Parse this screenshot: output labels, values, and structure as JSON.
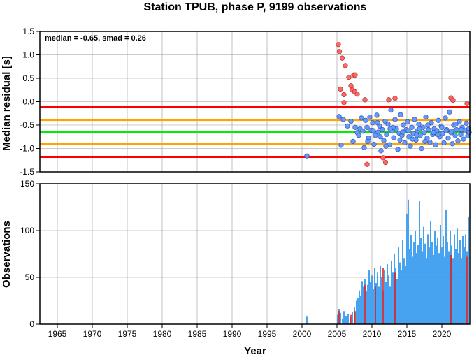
{
  "chart_data": [
    {
      "type": "scatter",
      "title": "Station TPUB, phase P, 9199 observations",
      "ylabel": "Median residual [s]",
      "annotation": "median = -0.65, smad = 0.26",
      "xlim": [
        1962.5,
        2024.0
      ],
      "ylim": [
        -1.5,
        1.5
      ],
      "yticks": [
        "1.5",
        "1.0",
        "0.5",
        "0.0",
        "-0.5",
        "-1.0",
        "-1.5"
      ],
      "grid": true,
      "reference_lines": [
        {
          "y": -0.12,
          "color": "#ff0000"
        },
        {
          "y": -0.39,
          "color": "#ffa500"
        },
        {
          "y": -0.65,
          "color": "#00ee00"
        },
        {
          "y": -0.91,
          "color": "#ffa500"
        },
        {
          "y": -1.18,
          "color": "#ff0000"
        }
      ],
      "colors": {
        "inlier": "#6699ff",
        "outlier": "#ff6666"
      },
      "outliers": [
        [
          2005.2,
          1.22
        ],
        [
          2005.35,
          1.07
        ],
        [
          2005.5,
          0.27
        ],
        [
          2005.75,
          0.93
        ],
        [
          2006.0,
          0.15
        ],
        [
          2006.2,
          0.77
        ],
        [
          2006.0,
          -0.02
        ],
        [
          2006.7,
          0.52
        ],
        [
          2007.0,
          0.34
        ],
        [
          2007.2,
          0.25
        ],
        [
          2007.4,
          0.57
        ],
        [
          2007.6,
          0.57
        ],
        [
          2007.55,
          0.21
        ],
        [
          2007.9,
          0.16
        ],
        [
          2009.0,
          0.04
        ],
        [
          2012.4,
          0.04
        ],
        [
          2013.3,
          0.07
        ],
        [
          2021.3,
          0.08
        ],
        [
          2021.6,
          0.03
        ],
        [
          2023.6,
          -0.04
        ],
        [
          2009.3,
          -1.34
        ],
        [
          2011.6,
          -1.2
        ],
        [
          2011.95,
          -1.3
        ]
      ],
      "inliers": [
        [
          2000.7,
          -1.16
        ],
        [
          2005.3,
          -0.32
        ],
        [
          2005.6,
          -0.93
        ],
        [
          2005.9,
          -0.38
        ],
        [
          2006.5,
          -0.52
        ],
        [
          2007.0,
          -0.42
        ],
        [
          2007.3,
          -0.85
        ],
        [
          2007.6,
          -0.55
        ],
        [
          2007.9,
          -0.66
        ],
        [
          2008.1,
          -0.72
        ],
        [
          2008.3,
          -0.58
        ],
        [
          2008.5,
          -0.35
        ],
        [
          2008.7,
          -0.63
        ],
        [
          2008.9,
          -0.98
        ],
        [
          2009.1,
          -0.4
        ],
        [
          2009.3,
          -0.55
        ],
        [
          2009.5,
          -0.78
        ],
        [
          2009.7,
          -0.33
        ],
        [
          2009.9,
          -0.61
        ],
        [
          2010.1,
          -0.45
        ],
        [
          2010.3,
          -0.91
        ],
        [
          2010.5,
          -0.72
        ],
        [
          2010.7,
          -0.29
        ],
        [
          2010.9,
          -0.65
        ],
        [
          2011.1,
          -0.52
        ],
        [
          2011.3,
          -1.05
        ],
        [
          2011.5,
          -0.6
        ],
        [
          2011.7,
          -0.83
        ],
        [
          2011.9,
          -0.42
        ],
        [
          2012.1,
          -0.7
        ],
        [
          2012.3,
          -0.48
        ],
        [
          2012.5,
          -0.92
        ],
        [
          2012.7,
          -0.18
        ],
        [
          2012.9,
          -0.63
        ],
        [
          2013.1,
          -0.77
        ],
        [
          2013.3,
          -0.38
        ],
        [
          2013.5,
          -0.58
        ],
        [
          2013.7,
          -1.02
        ],
        [
          2013.9,
          -0.67
        ],
        [
          2014.1,
          -0.28
        ],
        [
          2014.3,
          -0.72
        ],
        [
          2014.5,
          -0.5
        ],
        [
          2014.7,
          -0.88
        ],
        [
          2014.9,
          -0.6
        ],
        [
          2015.1,
          -0.43
        ],
        [
          2015.3,
          -0.75
        ],
        [
          2015.5,
          -0.95
        ],
        [
          2015.7,
          -0.55
        ],
        [
          2015.9,
          -0.68
        ],
        [
          2016.1,
          -0.38
        ],
        [
          2016.3,
          -0.82
        ],
        [
          2016.5,
          -0.62
        ],
        [
          2016.7,
          -0.48
        ],
        [
          2016.9,
          -0.72
        ],
        [
          2017.1,
          -1.0
        ],
        [
          2017.3,
          -0.55
        ],
        [
          2017.5,
          -0.66
        ],
        [
          2017.7,
          -0.33
        ],
        [
          2017.9,
          -0.78
        ],
        [
          2018.1,
          -0.6
        ],
        [
          2018.3,
          -0.87
        ],
        [
          2018.5,
          -0.45
        ],
        [
          2018.7,
          -0.7
        ],
        [
          2018.9,
          -0.58
        ],
        [
          2019.1,
          -0.92
        ],
        [
          2019.3,
          -0.62
        ],
        [
          2019.5,
          -0.4
        ],
        [
          2019.7,
          -0.75
        ],
        [
          2019.9,
          -0.52
        ],
        [
          2020.1,
          -0.68
        ],
        [
          2020.3,
          -0.88
        ],
        [
          2020.5,
          -0.35
        ],
        [
          2020.7,
          -0.6
        ],
        [
          2020.9,
          -0.78
        ],
        [
          2021.1,
          -0.22
        ],
        [
          2021.3,
          -0.66
        ],
        [
          2021.5,
          -0.9
        ],
        [
          2021.7,
          -0.5
        ],
        [
          2021.9,
          -0.72
        ],
        [
          2022.1,
          -0.6
        ],
        [
          2022.3,
          -0.84
        ],
        [
          2022.5,
          -0.43
        ],
        [
          2022.7,
          -0.7
        ],
        [
          2022.9,
          -0.55
        ],
        [
          2023.1,
          -0.8
        ],
        [
          2023.3,
          -0.62
        ],
        [
          2023.5,
          -0.46
        ],
        [
          2023.7,
          -0.73
        ],
        [
          2023.85,
          -0.58
        ],
        [
          2009.4,
          -0.85
        ],
        [
          2010.8,
          -0.45
        ],
        [
          2012.0,
          -0.95
        ],
        [
          2013.0,
          -0.55
        ],
        [
          2014.4,
          -0.65
        ],
        [
          2015.8,
          -0.8
        ],
        [
          2016.8,
          -0.58
        ],
        [
          2018.0,
          -0.5
        ],
        [
          2019.4,
          -0.7
        ],
        [
          2020.6,
          -0.62
        ],
        [
          2022.0,
          -0.48
        ],
        [
          2010.2,
          -0.62
        ],
        [
          2011.2,
          -0.75
        ],
        [
          2012.6,
          -0.58
        ],
        [
          2014.0,
          -0.82
        ],
        [
          2015.2,
          -0.62
        ],
        [
          2016.4,
          -0.72
        ],
        [
          2017.6,
          -0.85
        ],
        [
          2018.8,
          -0.66
        ],
        [
          2020.0,
          -0.55
        ],
        [
          2021.4,
          -0.63
        ],
        [
          2022.8,
          -0.6
        ],
        [
          2023.9,
          -0.66
        ]
      ]
    },
    {
      "type": "bar",
      "xlabel": "Year",
      "ylabel": "Observations",
      "xlim": [
        1962.5,
        2024.0
      ],
      "ylim": [
        0,
        150
      ],
      "yticks": [
        "150",
        "100",
        "50",
        "0"
      ],
      "xticks": [
        "1965",
        "1970",
        "1975",
        "1980",
        "1985",
        "1990",
        "1995",
        "2000",
        "2005",
        "2010",
        "2015",
        "2020"
      ],
      "grid": true,
      "colors": {
        "bar": "#3399ee",
        "outlier_bar": "#dd2222"
      },
      "bars": [
        [
          2000.7,
          8
        ],
        [
          2005.1,
          10
        ],
        [
          2005.3,
          16
        ],
        [
          2005.5,
          12
        ],
        [
          2005.8,
          6
        ],
        [
          2006.0,
          14
        ],
        [
          2006.3,
          9
        ],
        [
          2006.6,
          11
        ],
        [
          2006.9,
          7
        ],
        [
          2007.2,
          13
        ],
        [
          2007.5,
          18
        ],
        [
          2007.8,
          25
        ],
        [
          2008.0,
          28
        ],
        [
          2008.2,
          36
        ],
        [
          2008.4,
          30
        ],
        [
          2008.6,
          46
        ],
        [
          2008.8,
          40
        ],
        [
          2009.0,
          48
        ],
        [
          2009.2,
          35
        ],
        [
          2009.4,
          42
        ],
        [
          2009.6,
          58
        ],
        [
          2009.8,
          45
        ],
        [
          2010.0,
          52
        ],
        [
          2010.2,
          38
        ],
        [
          2010.4,
          60
        ],
        [
          2010.6,
          44
        ],
        [
          2010.8,
          55
        ],
        [
          2011.0,
          40
        ],
        [
          2011.2,
          62
        ],
        [
          2011.4,
          50
        ],
        [
          2011.6,
          36
        ],
        [
          2011.8,
          58
        ],
        [
          2012.0,
          45
        ],
        [
          2012.2,
          64
        ],
        [
          2012.4,
          52
        ],
        [
          2012.6,
          40
        ],
        [
          2012.8,
          68
        ],
        [
          2013.0,
          55
        ],
        [
          2013.2,
          75
        ],
        [
          2013.4,
          60
        ],
        [
          2013.6,
          48
        ],
        [
          2013.8,
          82
        ],
        [
          2014.0,
          66
        ],
        [
          2014.2,
          58
        ],
        [
          2014.4,
          90
        ],
        [
          2014.6,
          70
        ],
        [
          2014.8,
          62
        ],
        [
          2015.0,
          118
        ],
        [
          2015.2,
          133
        ],
        [
          2015.4,
          80
        ],
        [
          2015.6,
          95
        ],
        [
          2015.8,
          72
        ],
        [
          2016.0,
          88
        ],
        [
          2016.2,
          100
        ],
        [
          2016.4,
          76
        ],
        [
          2016.6,
          85
        ],
        [
          2016.8,
          132
        ],
        [
          2017.0,
          92
        ],
        [
          2017.2,
          78
        ],
        [
          2017.4,
          104
        ],
        [
          2017.6,
          86
        ],
        [
          2017.8,
          70
        ],
        [
          2018.0,
          96
        ],
        [
          2018.2,
          82
        ],
        [
          2018.4,
          110
        ],
        [
          2018.6,
          88
        ],
        [
          2018.8,
          74
        ],
        [
          2019.0,
          100
        ],
        [
          2019.2,
          84
        ],
        [
          2019.4,
          92
        ],
        [
          2019.6,
          76
        ],
        [
          2019.8,
          106
        ],
        [
          2020.0,
          82
        ],
        [
          2020.2,
          94
        ],
        [
          2020.4,
          72
        ],
        [
          2020.6,
          122
        ],
        [
          2020.8,
          88
        ],
        [
          2021.0,
          78
        ],
        [
          2021.2,
          100
        ],
        [
          2021.4,
          84
        ],
        [
          2021.6,
          70
        ],
        [
          2021.8,
          96
        ],
        [
          2022.0,
          80
        ],
        [
          2022.2,
          102
        ],
        [
          2022.4,
          76
        ],
        [
          2022.6,
          90
        ],
        [
          2022.8,
          70
        ],
        [
          2023.0,
          94
        ],
        [
          2023.2,
          82
        ],
        [
          2023.4,
          96
        ],
        [
          2023.6,
          78
        ],
        [
          2023.8,
          115
        ]
      ],
      "outlier_bars": [
        [
          2005.3,
          14
        ],
        [
          2007.0,
          10
        ],
        [
          2007.6,
          14
        ],
        [
          2009.0,
          42
        ],
        [
          2010.5,
          40
        ],
        [
          2011.6,
          60
        ],
        [
          2013.3,
          55
        ],
        [
          2021.3,
          74
        ],
        [
          2023.6,
          72
        ]
      ]
    }
  ]
}
